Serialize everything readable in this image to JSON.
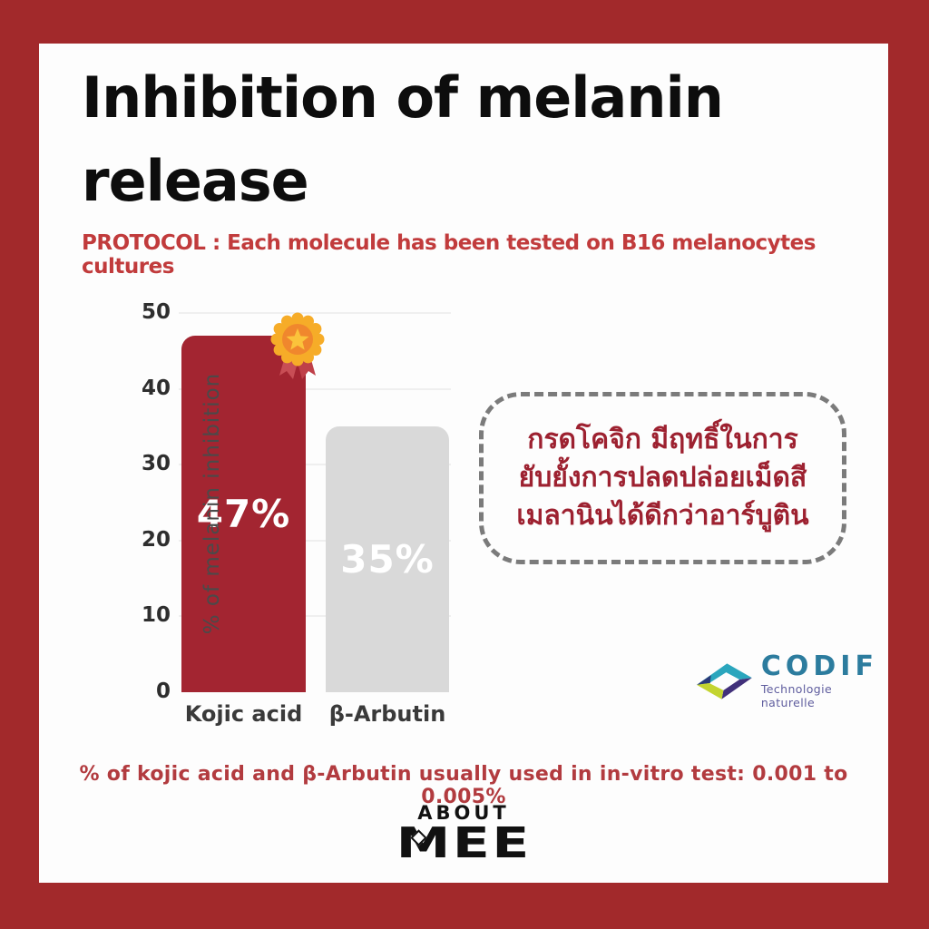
{
  "title": {
    "line1": "Inhibition of melanin",
    "line2": "release"
  },
  "protocol_text": "PROTOCOL : Each molecule has been tested on B16 melanocytes cultures",
  "chart_data": {
    "type": "bar",
    "categories": [
      "Kojic acid",
      "β-Arbutin"
    ],
    "values": [
      47,
      35
    ],
    "bar_labels": [
      "47%",
      "35%"
    ],
    "bar_colors": [
      "#A32531",
      "#D9D9D9"
    ],
    "ylabel": "% of melanin inhibition",
    "ylim": [
      0,
      50
    ],
    "yticks": [
      0,
      10,
      20,
      30,
      40,
      50
    ],
    "grid": true,
    "legend": "none",
    "winner_badge_category": "Kojic acid"
  },
  "callout": {
    "lines": [
      "กรดโคจิก มีฤทธิ์ในการ",
      "ยับยั้งการปลดปล่อยเม็ดสี",
      "เมลานินได้ดีกว่าอาร์บูติน"
    ]
  },
  "codif": {
    "name": "CODIF",
    "tagline": "Technologie naturelle"
  },
  "footnote_text": "% of kojic acid and β-Arbutin usually used in in-vitro test: 0.001 to 0.005%",
  "brand": {
    "about": "ABOUT",
    "mee": "MEE"
  },
  "colors": {
    "frame_red": "#A2292B",
    "protocol_red": "#C13B3C",
    "bar_red": "#A32531",
    "bar_gray": "#D9D9D9",
    "callout_text_red": "#9D2130",
    "footnote_red": "#B23B3F",
    "medal_gold": "#F6AC28",
    "medal_orange": "#F0872D",
    "medal_star_gold": "#FBC33B",
    "medal_ribbon_red": "#C84E55",
    "codif_teal_text": "#2C7C9E",
    "codif_mark_teal": "#2BA6BD",
    "codif_mark_purple": "#41307A",
    "codif_mark_lime": "#C3D430",
    "codif_mark_navy": "#2A3A78"
  }
}
